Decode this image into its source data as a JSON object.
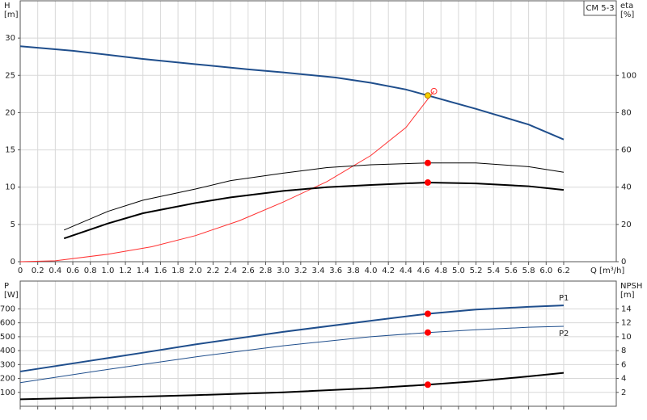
{
  "chart_data": [
    {
      "type": "line",
      "title": "CM 5-3",
      "xlabel": "Q [m³/h]",
      "ylabel": "H",
      "yunit": "[m]",
      "y2label": "eta",
      "y2unit": "[%]",
      "xlim": [
        0,
        6.8
      ],
      "ylim": [
        0,
        35
      ],
      "y2lim": [
        0,
        140
      ],
      "grid": true,
      "xtick_labels": true,
      "xticks": [
        0,
        0.2,
        0.4,
        0.6,
        0.8,
        {
          "value": 1,
          "label": "1.0"
        },
        1.2,
        1.4,
        1.6,
        1.8,
        {
          "value": 2,
          "label": "2.0"
        },
        2.2,
        2.4,
        2.6,
        2.8,
        {
          "value": 3,
          "label": "3.0"
        },
        3.2,
        3.4,
        3.6,
        3.8,
        {
          "value": 4,
          "label": "4.0"
        },
        4.2,
        4.4,
        4.6,
        4.8,
        {
          "value": 5,
          "label": "5.0"
        },
        5.2,
        5.4,
        5.6,
        5.8,
        {
          "value": 6,
          "label": "6.0"
        },
        6.2
      ],
      "yticks": [
        0,
        5,
        10,
        15,
        20,
        25,
        30
      ],
      "y2ticks": [
        0,
        20,
        40,
        60,
        80,
        100
      ],
      "series": [
        {
          "color": "#1f4e8c",
          "width": 2,
          "axis": "y",
          "x": [
            0,
            0.6,
            1.4,
            2.0,
            2.6,
            3.0,
            3.6,
            4.0,
            4.4,
            4.65,
            5.2,
            5.8,
            6.2
          ],
          "values": [
            28.9,
            28.3,
            27.2,
            26.5,
            25.8,
            25.4,
            24.7,
            24.0,
            23.1,
            22.3,
            20.5,
            18.4,
            16.4
          ]
        },
        {
          "color": "#ff3030",
          "width": 1,
          "axis": "y2",
          "x": [
            0,
            0.4,
            1.0,
            1.5,
            2.0,
            2.5,
            3.0,
            3.5,
            4.0,
            4.4,
            4.72
          ],
          "values": [
            0,
            0.5,
            4,
            8,
            14,
            22,
            32,
            43,
            57,
            72,
            91.5
          ]
        },
        {
          "color": "#000000",
          "width": 1,
          "axis": "y2",
          "x": [
            0.5,
            1.0,
            1.4,
            2.0,
            2.4,
            3.0,
            3.5,
            4.0,
            4.65,
            5.2,
            5.8,
            6.2
          ],
          "values": [
            17,
            27,
            33,
            39,
            43.5,
            47.5,
            50.5,
            52,
            53,
            53,
            51,
            48
          ]
        },
        {
          "color": "#000000",
          "width": 2,
          "axis": "y2",
          "x": [
            0.5,
            1.0,
            1.4,
            2.0,
            2.4,
            3.0,
            3.5,
            4.0,
            4.65,
            5.2,
            5.8,
            6.2
          ],
          "values": [
            12.5,
            20.5,
            26,
            31.5,
            34.5,
            38,
            40,
            41.2,
            42.5,
            42,
            40.5,
            38.5
          ]
        }
      ],
      "points": [
        {
          "x": 4.65,
          "y": 53,
          "axis": "y2",
          "color": "#ff0000",
          "style": "filled"
        },
        {
          "x": 4.65,
          "y": 42.5,
          "axis": "y2",
          "color": "#ff0000",
          "style": "filled"
        },
        {
          "x": 4.72,
          "y": 91.5,
          "axis": "y2",
          "color": "#ff3030",
          "style": "open"
        },
        {
          "x": 4.65,
          "y": 22.3,
          "axis": "y",
          "color": "#f5d000",
          "style": "filled"
        }
      ]
    },
    {
      "type": "line",
      "ylabel": "P",
      "yunit": "[W]",
      "y2label": "NPSH",
      "y2unit": "[m]",
      "xlim": [
        0,
        6.8
      ],
      "ylim": [
        0,
        900
      ],
      "y2lim": [
        0,
        18
      ],
      "grid": true,
      "xtick_labels": false,
      "xticks": [
        0,
        0.2,
        0.4,
        0.6,
        0.8,
        1,
        1.2,
        1.4,
        1.6,
        1.8,
        2,
        2.2,
        2.4,
        2.6,
        2.8,
        3,
        3.2,
        3.4,
        3.6,
        3.8,
        4,
        4.2,
        4.4,
        4.6,
        4.8,
        5,
        5.2,
        5.4,
        5.6,
        5.8,
        6,
        6.2
      ],
      "yticks": [
        100,
        200,
        300,
        400,
        500,
        600,
        700
      ],
      "y2ticks": [
        2,
        4,
        6,
        8,
        10,
        12,
        14
      ],
      "series": [
        {
          "name": "P1",
          "color": "#1f4e8c",
          "width": 2,
          "axis": "y",
          "x": [
            0,
            1.4,
            2.0,
            3.0,
            4.0,
            4.65,
            5.2,
            5.8,
            6.2
          ],
          "values": [
            250,
            385,
            445,
            535,
            615,
            665,
            695,
            715,
            725
          ]
        },
        {
          "name": "P2",
          "color": "#1f4e8c",
          "width": 1,
          "axis": "y",
          "x": [
            0,
            1.0,
            2.0,
            3.0,
            4.0,
            4.65,
            5.2,
            5.8,
            6.2
          ],
          "values": [
            170,
            265,
            355,
            435,
            500,
            530,
            550,
            568,
            575
          ]
        },
        {
          "color": "#000000",
          "width": 2,
          "axis": "y2",
          "x": [
            0,
            1.4,
            2.0,
            3.0,
            4.0,
            4.65,
            5.2,
            5.8,
            6.2
          ],
          "values": [
            1.0,
            1.4,
            1.6,
            2.0,
            2.6,
            3.1,
            3.6,
            4.3,
            4.8
          ]
        }
      ],
      "points": [
        {
          "x": 4.65,
          "y": 665,
          "axis": "y",
          "color": "#ff0000",
          "style": "filled"
        },
        {
          "x": 4.65,
          "y": 530,
          "axis": "y",
          "color": "#ff0000",
          "style": "filled"
        },
        {
          "x": 4.65,
          "y": 3.1,
          "axis": "y2",
          "color": "#ff0000",
          "style": "filled"
        }
      ]
    }
  ]
}
